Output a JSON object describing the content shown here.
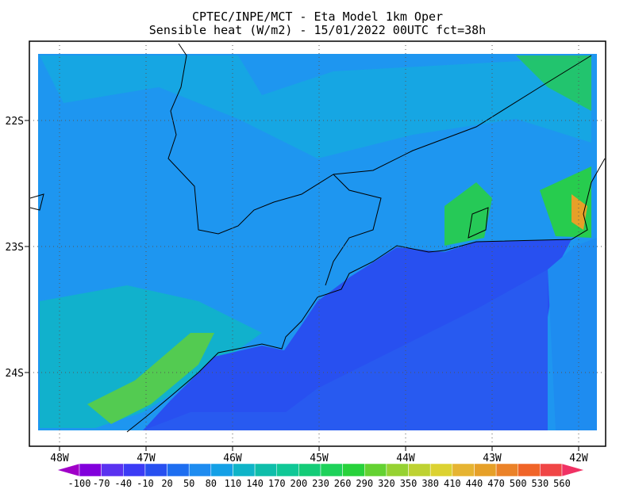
{
  "header": {
    "title": "CPTEC/INPE/MCT -  Eta Model 1km Oper",
    "subtitle": "Sensible heat (W/m2) - 15/01/2022 00UTC fct=38h"
  },
  "map": {
    "lat_labels": [
      "22S",
      "23S",
      "24S"
    ],
    "lon_labels": [
      "48W",
      "47W",
      "46W",
      "45W",
      "44W",
      "43W",
      "42W"
    ],
    "grid": true
  },
  "colorbar": {
    "labels": [
      -100,
      -70,
      -40,
      -10,
      20,
      50,
      80,
      110,
      140,
      170,
      200,
      230,
      260,
      290,
      320,
      350,
      380,
      410,
      440,
      470,
      500,
      530,
      560
    ],
    "colors": [
      "#a000c8",
      "#8200dc",
      "#5a32f0",
      "#3c3cf5",
      "#2850f0",
      "#1e6ef0",
      "#1e8cf0",
      "#14a0e6",
      "#0fb4c8",
      "#0fbeaa",
      "#10c896",
      "#14cc78",
      "#1ed25a",
      "#28d23c",
      "#64d232",
      "#96d232",
      "#bed232",
      "#dcd232",
      "#e6b432",
      "#e6a028",
      "#eb8228",
      "#f06428",
      "#f04646",
      "#f03264"
    ]
  }
}
